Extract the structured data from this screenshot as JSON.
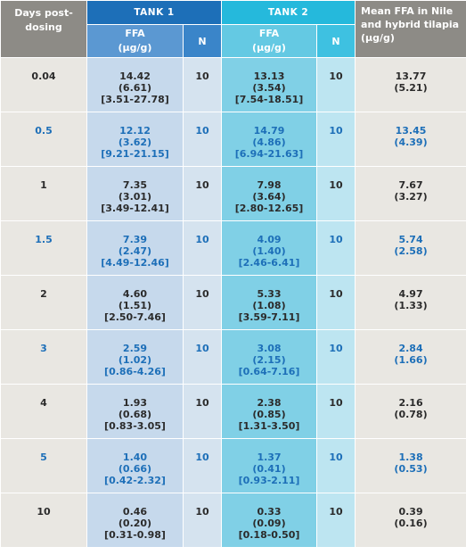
{
  "header": {
    "days": "Days post-dosing",
    "tank1": "TANK 1",
    "tank2": "TANK 2",
    "mean": "Mean FFA in Nile and hybrid tilapia (µg/g)",
    "ffa1": "FFA (µg/g)",
    "n1": "N",
    "ffa2": "FFA (µg/g)",
    "n2": "N"
  },
  "rows": [
    {
      "days": "0.04",
      "tank1": [
        "14.42",
        "(6.61)",
        "[3.51-27.78]"
      ],
      "n1": "10",
      "tank2": [
        "13.13",
        "(3.54)",
        "[7.54-18.51]"
      ],
      "n2": "10",
      "mean": [
        "13.77",
        "(5.21)"
      ]
    },
    {
      "days": "0.5",
      "tank1": [
        "12.12",
        "(3.62)",
        "[9.21-21.15]"
      ],
      "n1": "10",
      "tank2": [
        "14.79",
        "(4.86)",
        "[6.94-21.63]"
      ],
      "n2": "10",
      "mean": [
        "13.45",
        "(4.39)"
      ]
    },
    {
      "days": "1",
      "tank1": [
        "7.35",
        "(3.01)",
        "[3.49-12.41]"
      ],
      "n1": "10",
      "tank2": [
        "7.98",
        "(3.64)",
        "[2.80-12.65]"
      ],
      "n2": "10",
      "mean": [
        "7.67",
        "(3.27)"
      ]
    },
    {
      "days": "1.5",
      "tank1": [
        "7.39",
        "(2.47)",
        "[4.49-12.46]"
      ],
      "n1": "10",
      "tank2": [
        "4.09",
        "(1.40)",
        "[2.46-6.41]"
      ],
      "n2": "10",
      "mean": [
        "5.74",
        "(2.58)"
      ]
    },
    {
      "days": "2",
      "tank1": [
        "4.60",
        "(1.51)",
        "[2.50-7.46]"
      ],
      "n1": "10",
      "tank2": [
        "5.33",
        "(1.08)",
        "[3.59-7.11]"
      ],
      "n2": "10",
      "mean": [
        "4.97",
        "(1.33)"
      ]
    },
    {
      "days": "3",
      "tank1": [
        "2.59",
        "(1.02)",
        "[0.86-4.26]"
      ],
      "n1": "10",
      "tank2": [
        "3.08",
        "(2.15)",
        "[0.64-7.16]"
      ],
      "n2": "10",
      "mean": [
        "2.84",
        "(1.66)"
      ]
    },
    {
      "days": "4",
      "tank1": [
        "1.93",
        "(0.68)",
        "[0.83-3.05]"
      ],
      "n1": "10",
      "tank2": [
        "2.38",
        "(0.85)",
        "[1.31-3.50]"
      ],
      "n2": "10",
      "mean": [
        "2.16",
        "(0.78)"
      ]
    },
    {
      "days": "5",
      "tank1": [
        "1.40",
        "(0.66)",
        "[0.42-2.32]"
      ],
      "n1": "10",
      "tank2": [
        "1.37",
        "(0.41)",
        "[0.93-2.11]"
      ],
      "n2": "10",
      "mean": [
        "1.38",
        "(0.53)"
      ]
    },
    {
      "days": "10",
      "tank1": [
        "0.46",
        "(0.20)",
        "[0.31-0.98]"
      ],
      "n1": "10",
      "tank2": [
        "0.33",
        "(0.09)",
        "[0.18-0.50]"
      ],
      "n2": "10",
      "mean": [
        "0.39",
        "(0.16)"
      ]
    }
  ]
}
